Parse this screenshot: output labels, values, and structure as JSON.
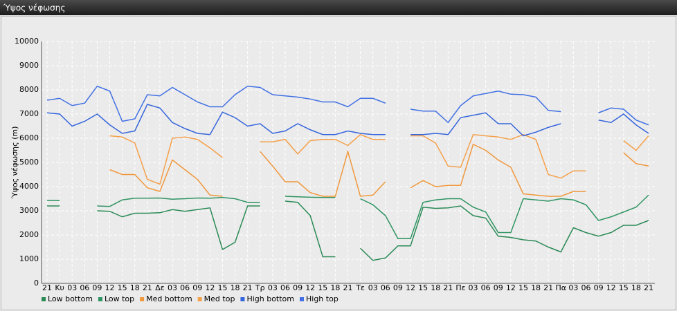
{
  "chart_data": {
    "type": "line",
    "title": "Ύψος νέφωσης",
    "ylabel": "Ύψος νέφωσης (m)",
    "categories": [
      "21",
      "Κυ",
      "03",
      "06",
      "09",
      "12",
      "15",
      "18",
      "21",
      "Δε",
      "03",
      "06",
      "09",
      "12",
      "15",
      "18",
      "21",
      "Τρ",
      "03",
      "06",
      "09",
      "12",
      "15",
      "18",
      "21",
      "Τε",
      "03",
      "06",
      "09",
      "12",
      "15",
      "18",
      "21",
      "Πε",
      "03",
      "06",
      "09",
      "12",
      "15",
      "18",
      "21",
      "Πα",
      "03",
      "06",
      "09",
      "12",
      "15",
      "18",
      "21"
    ],
    "series": [
      {
        "name": "Low bottom",
        "color": "#2a8a55",
        "values": [
          3200,
          3200,
          null,
          null,
          3000,
          2980,
          2750,
          2900,
          2900,
          2920,
          3050,
          2980,
          3050,
          3120,
          1400,
          1700,
          3200,
          3200,
          null,
          3400,
          3350,
          2800,
          1100,
          1100,
          null,
          1450,
          950,
          1050,
          1550,
          1550,
          3150,
          3100,
          3120,
          3200,
          2800,
          2700,
          1950,
          1900,
          1800,
          1750,
          1500,
          1300,
          2300,
          2100,
          1950,
          2100,
          2400,
          2400,
          2600
        ]
      },
      {
        "name": "Low top",
        "color": "#2e9462",
        "values": [
          3430,
          3420,
          null,
          null,
          3200,
          3180,
          3450,
          3520,
          3520,
          3530,
          3480,
          3500,
          3530,
          3520,
          3550,
          3500,
          3350,
          3350,
          null,
          3600,
          3580,
          3560,
          3550,
          3550,
          null,
          3500,
          3250,
          2800,
          1850,
          1850,
          3350,
          3450,
          3500,
          3500,
          3150,
          2950,
          2100,
          2100,
          3500,
          3450,
          3400,
          3500,
          3450,
          3250,
          2600,
          2750,
          2950,
          3150,
          3650
        ]
      },
      {
        "name": "Med bottom",
        "color": "#f0983c",
        "values": [
          null,
          null,
          null,
          null,
          null,
          4700,
          4500,
          4500,
          3950,
          3800,
          5100,
          4700,
          4300,
          3650,
          3600,
          null,
          null,
          5450,
          4850,
          4200,
          4200,
          3750,
          3600,
          3600,
          5450,
          3600,
          3650,
          4200,
          null,
          3950,
          4250,
          4000,
          4050,
          4050,
          5750,
          5500,
          5100,
          4800,
          3700,
          3650,
          3600,
          3600,
          3800,
          3800,
          null,
          null,
          5400,
          4950,
          4850
        ]
      },
      {
        "name": "Med top",
        "color": "#f5a04a",
        "values": [
          null,
          null,
          null,
          null,
          null,
          6100,
          6050,
          5800,
          4300,
          4100,
          6000,
          6050,
          5950,
          5600,
          5200,
          null,
          null,
          5850,
          5850,
          5950,
          5350,
          5900,
          5950,
          5950,
          5700,
          6150,
          5950,
          5950,
          null,
          6100,
          6100,
          5800,
          4850,
          4800,
          6150,
          6100,
          6050,
          5950,
          6150,
          5950,
          4500,
          4350,
          4650,
          4650,
          null,
          null,
          5900,
          5500,
          6100
        ]
      },
      {
        "name": "High bottom",
        "color": "#3565dc",
        "values": [
          7050,
          7000,
          6500,
          6700,
          7000,
          6550,
          6200,
          6300,
          7400,
          7250,
          6650,
          6400,
          6200,
          6150,
          7080,
          6850,
          6500,
          6600,
          6200,
          6300,
          6600,
          6350,
          6150,
          6150,
          6300,
          6200,
          6150,
          6150,
          null,
          6150,
          6150,
          6200,
          6150,
          6850,
          6950,
          7050,
          6600,
          6600,
          6100,
          6250,
          6450,
          6600,
          null,
          null,
          6750,
          6650,
          7000,
          6550,
          6200
        ]
      },
      {
        "name": "High top",
        "color": "#4070e4",
        "values": [
          7570,
          7650,
          7350,
          7450,
          8150,
          7950,
          6700,
          6800,
          7800,
          7750,
          8100,
          7800,
          7500,
          7300,
          7300,
          7800,
          8150,
          8100,
          7800,
          7750,
          7700,
          7620,
          7500,
          7500,
          7300,
          7650,
          7650,
          7450,
          null,
          7200,
          7120,
          7120,
          6650,
          7350,
          7750,
          7850,
          7950,
          7820,
          7800,
          7700,
          7150,
          7100,
          null,
          null,
          7050,
          7250,
          7200,
          6750,
          6550
        ]
      }
    ],
    "ylim": [
      0,
      10000
    ],
    "yticks": [
      0,
      1000,
      2000,
      3000,
      4000,
      5000,
      6000,
      7000,
      8000,
      9000,
      10000
    ],
    "grid": true,
    "legend": "bottom-left"
  }
}
